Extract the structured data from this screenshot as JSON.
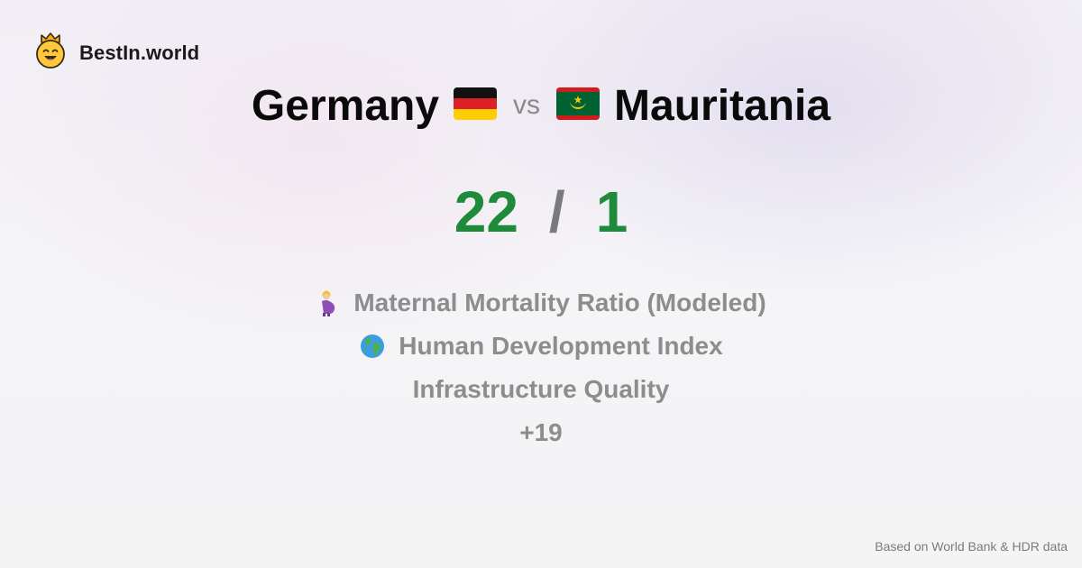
{
  "brand": {
    "name": "BestIn.world",
    "icon": "crowned-smiley-icon"
  },
  "comparison": {
    "left_country": "Germany",
    "left_flag": "germany-flag-icon",
    "vs_label": "vs",
    "right_country": "Mauritania",
    "right_flag": "mauritania-flag-icon"
  },
  "score": {
    "left": "22",
    "separator": "/",
    "right": "1",
    "color": "#1f8a3a"
  },
  "metrics": [
    {
      "label": "Maternal Mortality Ratio (Modeled)",
      "icon": "pregnant-woman-icon"
    },
    {
      "label": "Human Development Index",
      "icon": "globe-icon"
    },
    {
      "label": "Infrastructure Quality",
      "icon": ""
    }
  ],
  "more_count": "+19",
  "footer": {
    "source": "Based on World Bank & HDR data"
  }
}
